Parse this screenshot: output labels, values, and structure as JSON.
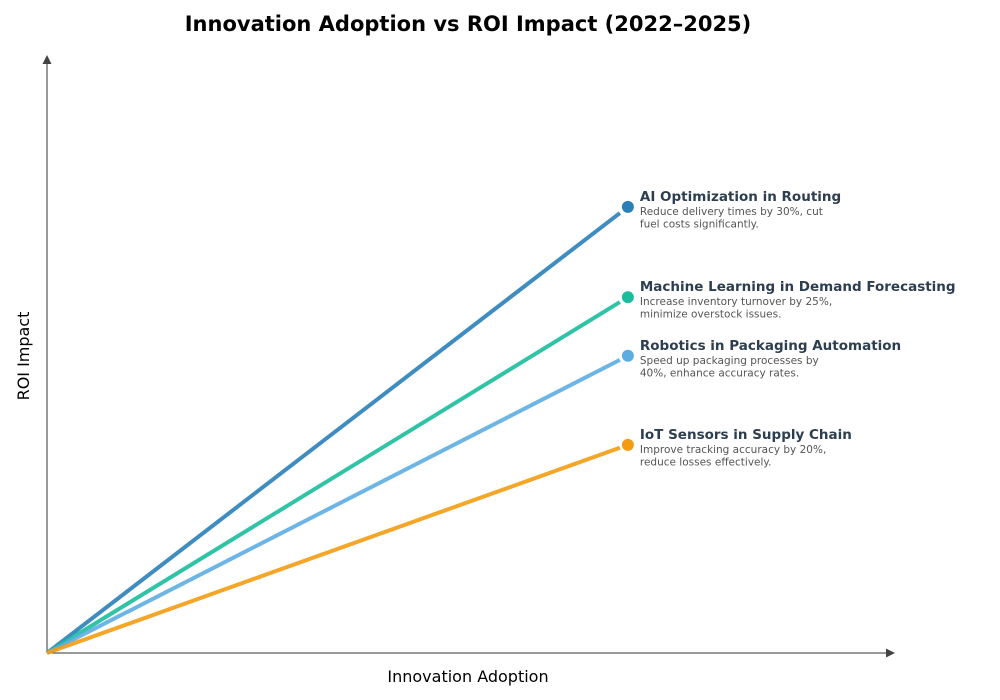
{
  "chart_data": {
    "type": "line",
    "title": "Innovation Adoption vs ROI Impact (2022–2025)",
    "xlabel": "Innovation Adoption",
    "ylabel": "ROI Impact",
    "xlim": [
      0,
      1
    ],
    "ylim": [
      0,
      1
    ],
    "grid": false,
    "ticks": false,
    "series": [
      {
        "name": "AI Optimization in Routing",
        "description": [
          "Reduce delivery times by 30%, cut",
          "fuel costs significantly."
        ],
        "color": "#2980b9",
        "points": [
          [
            0,
            0
          ],
          [
            0.685,
            0.746
          ]
        ]
      },
      {
        "name": "Machine Learning in Demand Forecasting",
        "description": [
          "Increase inventory turnover by 25%,",
          "minimize overstock issues."
        ],
        "color": "#1abc9c",
        "points": [
          [
            0,
            0
          ],
          [
            0.685,
            0.595
          ]
        ]
      },
      {
        "name": "Robotics in Packaging Automation",
        "description": [
          "Speed up packaging processes by",
          "40%, enhance accuracy rates."
        ],
        "color": "#5dade2",
        "points": [
          [
            0,
            0
          ],
          [
            0.685,
            0.497
          ]
        ]
      },
      {
        "name": "IoT Sensors in Supply Chain",
        "description": [
          "Improve tracking accuracy by 20%,",
          "reduce losses effectively."
        ],
        "color": "#f39c12",
        "points": [
          [
            0,
            0
          ],
          [
            0.685,
            0.348
          ]
        ]
      }
    ]
  }
}
